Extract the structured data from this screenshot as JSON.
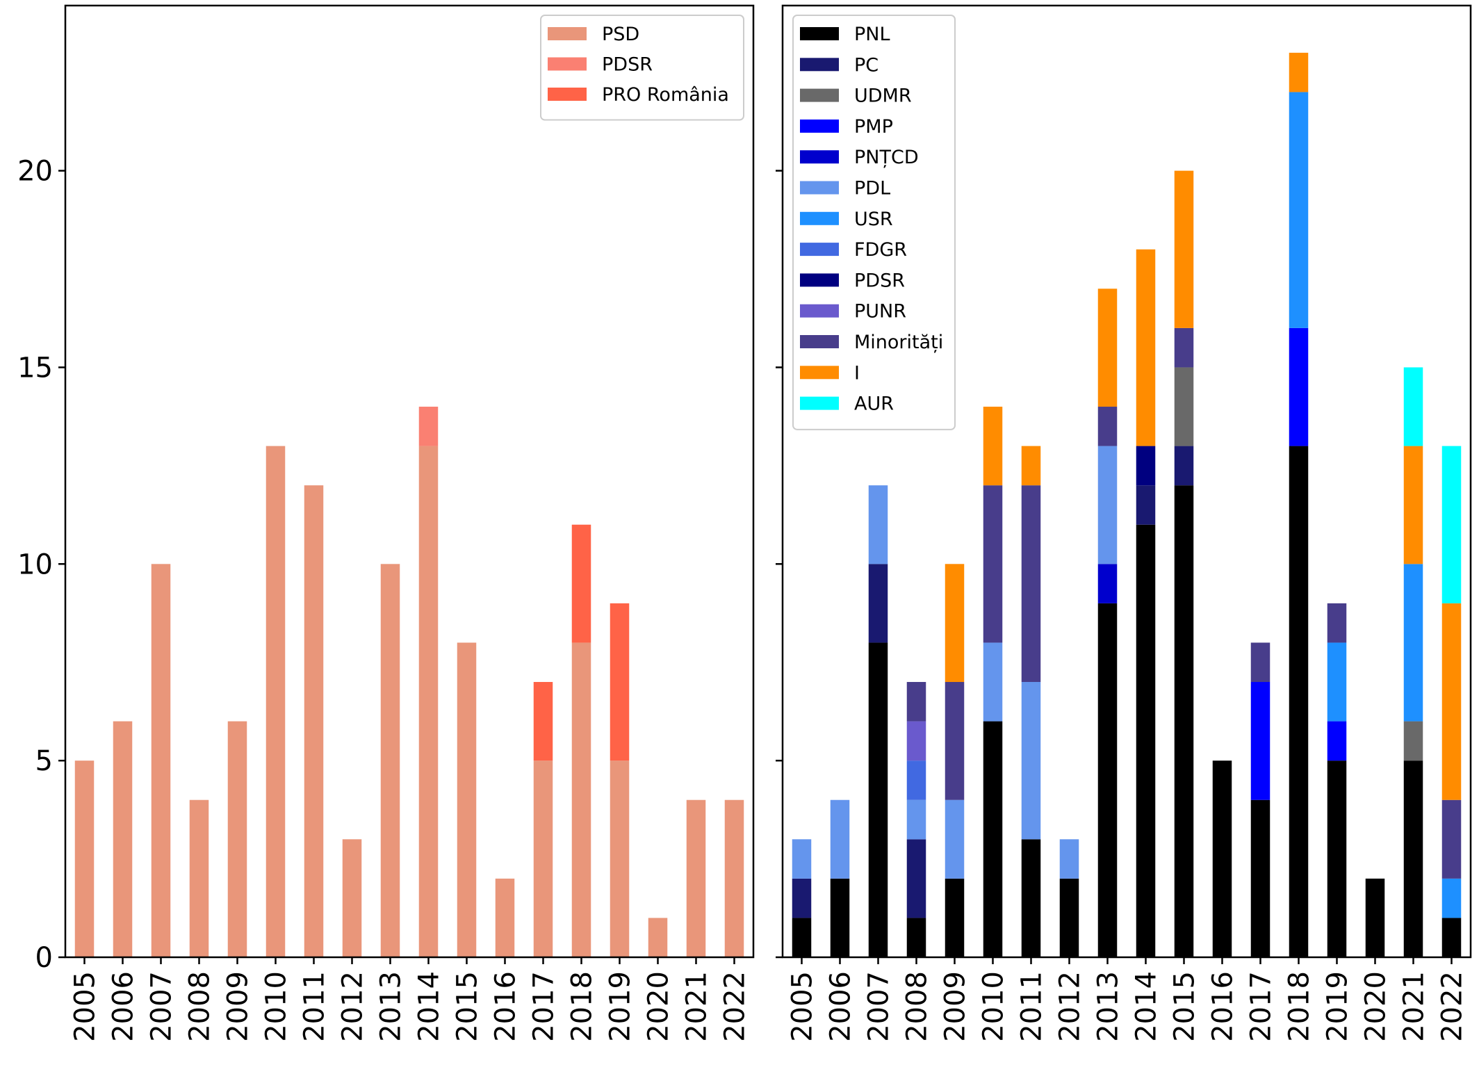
{
  "chart_data": [
    {
      "type": "bar",
      "stacked": true,
      "categories": [
        "2005",
        "2006",
        "2007",
        "2008",
        "2009",
        "2010",
        "2011",
        "2012",
        "2013",
        "2014",
        "2015",
        "2016",
        "2017",
        "2018",
        "2019",
        "2020",
        "2021",
        "2022"
      ],
      "ylim": [
        0,
        24.2
      ],
      "yticks": [
        0,
        5,
        10,
        15,
        20
      ],
      "xlabel": "",
      "ylabel": "",
      "legend_position": "top-right",
      "grid": false,
      "series": [
        {
          "name": "PSD",
          "color": "#e9967a",
          "values": [
            5,
            6,
            10,
            4,
            6,
            13,
            12,
            3,
            10,
            13,
            8,
            2,
            5,
            8,
            5,
            1,
            4,
            4
          ]
        },
        {
          "name": "PDSR",
          "color": "#fa8072",
          "values": [
            0,
            0,
            0,
            0,
            0,
            0,
            0,
            0,
            0,
            1,
            0,
            0,
            0,
            0,
            0,
            0,
            0,
            0
          ]
        },
        {
          "name": "PRO România",
          "color": "#ff6347",
          "values": [
            0,
            0,
            0,
            0,
            0,
            0,
            0,
            0,
            0,
            0,
            0,
            0,
            2,
            3,
            4,
            0,
            0,
            0
          ]
        }
      ]
    },
    {
      "type": "bar",
      "stacked": true,
      "categories": [
        "2005",
        "2006",
        "2007",
        "2008",
        "2009",
        "2010",
        "2011",
        "2012",
        "2013",
        "2014",
        "2015",
        "2016",
        "2017",
        "2018",
        "2019",
        "2020",
        "2021",
        "2022"
      ],
      "ylim": [
        0,
        24.2
      ],
      "yticks": [
        0,
        5,
        10,
        15,
        20
      ],
      "xlabel": "",
      "ylabel": "",
      "legend_position": "top-left",
      "grid": false,
      "series": [
        {
          "name": "PNL",
          "color": "#000000",
          "values": [
            1,
            2,
            8,
            1,
            2,
            6,
            3,
            2,
            9,
            11,
            12,
            5,
            4,
            13,
            5,
            2,
            5,
            1
          ]
        },
        {
          "name": "PC",
          "color": "#191970",
          "values": [
            1,
            0,
            2,
            2,
            0,
            0,
            0,
            0,
            0,
            1,
            1,
            0,
            0,
            0,
            0,
            0,
            0,
            0
          ]
        },
        {
          "name": "UDMR",
          "color": "#696969",
          "values": [
            0,
            0,
            0,
            0,
            0,
            0,
            0,
            0,
            0,
            0,
            2,
            0,
            0,
            0,
            0,
            0,
            1,
            0
          ]
        },
        {
          "name": "PMP",
          "color": "#0000ff",
          "values": [
            0,
            0,
            0,
            0,
            0,
            0,
            0,
            0,
            0,
            0,
            0,
            0,
            3,
            3,
            1,
            0,
            0,
            0
          ]
        },
        {
          "name": "PNȚCD",
          "color": "#0000cd",
          "values": [
            0,
            0,
            0,
            0,
            0,
            0,
            0,
            0,
            1,
            0,
            0,
            0,
            0,
            0,
            0,
            0,
            0,
            0
          ]
        },
        {
          "name": "PDL",
          "color": "#6495ed",
          "values": [
            1,
            2,
            2,
            1,
            2,
            2,
            4,
            1,
            3,
            0,
            0,
            0,
            0,
            0,
            0,
            0,
            0,
            0
          ]
        },
        {
          "name": "USR",
          "color": "#1e90ff",
          "values": [
            0,
            0,
            0,
            0,
            0,
            0,
            0,
            0,
            0,
            0,
            0,
            0,
            0,
            6,
            2,
            0,
            4,
            1
          ]
        },
        {
          "name": "FDGR",
          "color": "#4169e1",
          "values": [
            0,
            0,
            0,
            1,
            0,
            0,
            0,
            0,
            0,
            0,
            0,
            0,
            0,
            0,
            0,
            0,
            0,
            0
          ]
        },
        {
          "name": "PDSR",
          "color": "#000080",
          "values": [
            0,
            0,
            0,
            0,
            0,
            0,
            0,
            0,
            0,
            1,
            0,
            0,
            0,
            0,
            0,
            0,
            0,
            0
          ]
        },
        {
          "name": "PUNR",
          "color": "#6a5acd",
          "values": [
            0,
            0,
            0,
            1,
            0,
            0,
            0,
            0,
            0,
            0,
            0,
            0,
            0,
            0,
            0,
            0,
            0,
            0
          ]
        },
        {
          "name": "Minorități",
          "color": "#483d8b",
          "values": [
            0,
            0,
            0,
            1,
            3,
            4,
            5,
            0,
            1,
            0,
            1,
            0,
            1,
            0,
            1,
            0,
            0,
            2
          ]
        },
        {
          "name": "I",
          "color": "#ff8c00",
          "values": [
            0,
            0,
            0,
            0,
            3,
            2,
            1,
            0,
            3,
            5,
            4,
            0,
            0,
            1,
            0,
            0,
            3,
            5
          ]
        },
        {
          "name": "AUR",
          "color": "#00ffff",
          "values": [
            0,
            0,
            0,
            0,
            0,
            0,
            0,
            0,
            0,
            0,
            0,
            0,
            0,
            0,
            0,
            0,
            2,
            4
          ]
        }
      ]
    }
  ]
}
